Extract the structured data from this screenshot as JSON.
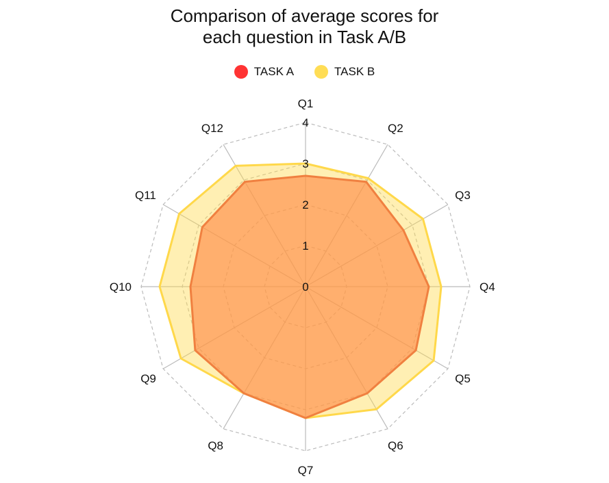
{
  "chart_data": {
    "type": "radar",
    "title": [
      "Comparison of average scores for",
      "each question in Task A/B"
    ],
    "categories": [
      "Q1",
      "Q2",
      "Q3",
      "Q4",
      "Q5",
      "Q6",
      "Q7",
      "Q8",
      "Q9",
      "Q10",
      "Q11",
      "Q12"
    ],
    "rlim": [
      0,
      4
    ],
    "rticks": [
      "0",
      "1",
      "2",
      "3",
      "4"
    ],
    "legend_position": "top",
    "grid": true,
    "series": [
      {
        "name": "TASK A",
        "values": [
          2.7,
          2.95,
          2.75,
          3.0,
          3.1,
          3.0,
          3.2,
          3.0,
          3.1,
          2.8,
          2.9,
          2.95
        ],
        "color": "#ff3333",
        "line_color": "#f08040",
        "fill_color": "#ff8844"
      },
      {
        "name": "TASK B",
        "values": [
          3.0,
          3.05,
          3.3,
          3.3,
          3.6,
          3.45,
          3.2,
          3.0,
          3.5,
          3.55,
          3.55,
          3.4
        ],
        "color": "#ffdd55",
        "line_color": "#ffd84a",
        "fill_color": "#ffd84a"
      }
    ]
  }
}
